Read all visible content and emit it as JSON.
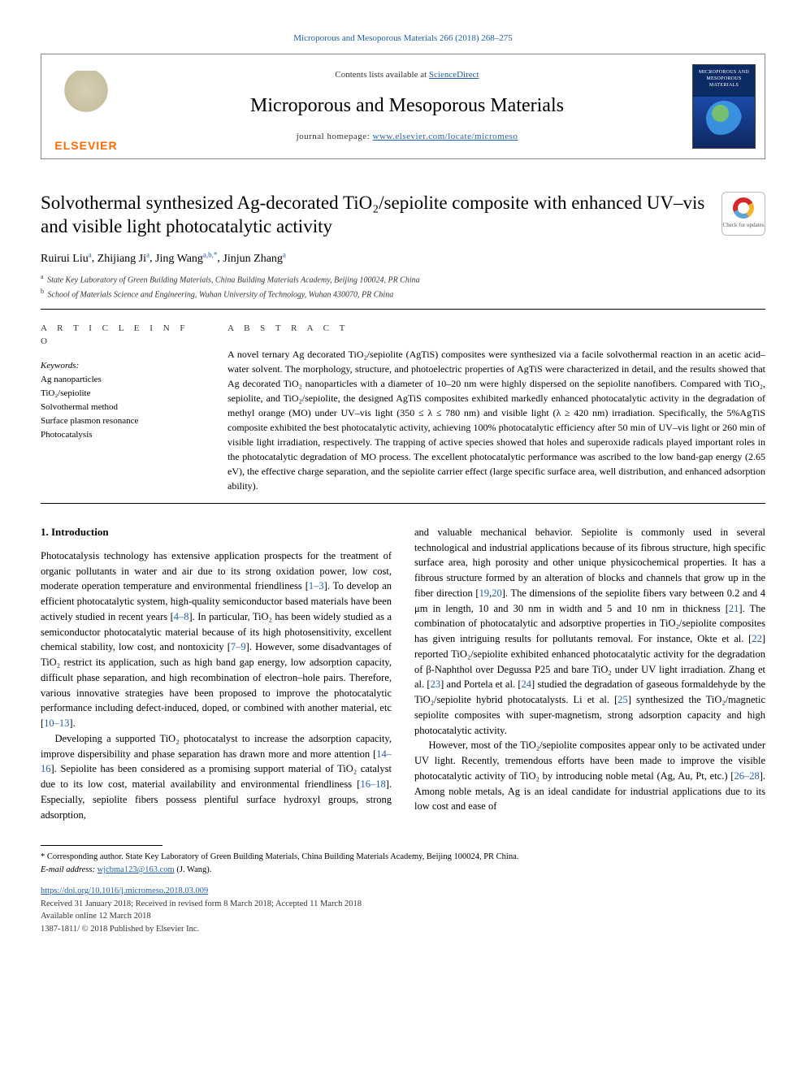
{
  "top_citation": "Microporous and Mesoporous Materials 266 (2018) 268–275",
  "header": {
    "publisher_word": "ELSEVIER",
    "contents_prefix": "Contents lists available at ",
    "contents_link": "ScienceDirect",
    "journal_name": "Microporous and Mesoporous Materials",
    "homepage_prefix": "journal homepage: ",
    "homepage_link": "www.elsevier.com/locate/micromeso",
    "cover_label": "MICROPOROUS AND MESOPOROUS MATERIALS"
  },
  "article": {
    "title": "Solvothermal synthesized Ag-decorated TiO₂/sepiolite composite with enhanced UV–vis and visible light photocatalytic activity",
    "crossmark_label": "Check for updates"
  },
  "authors_line": {
    "names": [
      {
        "name": "Ruirui Liu",
        "sup": "a"
      },
      {
        "name": "Zhijiang Ji",
        "sup": "a"
      },
      {
        "name": "Jing Wang",
        "sup": "a,b,*"
      },
      {
        "name": "Jinjun Zhang",
        "sup": "a"
      }
    ]
  },
  "affiliations": [
    {
      "sup": "a",
      "text": "State Key Laboratory of Green Building Materials, China Building Materials Academy, Beijing 100024, PR China"
    },
    {
      "sup": "b",
      "text": "School of Materials Science and Engineering, Wuhan University of Technology, Wuhan 430070, PR China"
    }
  ],
  "info": {
    "heading": "A R T I C L E  I N F O",
    "keywords_label": "Keywords:",
    "keywords": [
      "Ag nanoparticles",
      "TiO₂/sepiolite",
      "Solvothermal method",
      "Surface plasmon resonance",
      "Photocatalysis"
    ]
  },
  "abstract": {
    "heading": "A B S T R A C T",
    "text": "A novel ternary Ag decorated TiO₂/sepiolite (AgTiS) composites were synthesized via a facile solvothermal reaction in an acetic acid–water solvent. The morphology, structure, and photoelectric properties of AgTiS were characterized in detail, and the results showed that Ag decorated TiO₂ nanoparticles with a diameter of 10–20 nm were highly dispersed on the sepiolite nanofibers. Compared with TiO₂, sepiolite, and TiO₂/sepiolite, the designed AgTiS composites exhibited markedly enhanced photocatalytic activity in the degradation of methyl orange (MO) under UV–vis light (350 ≤ λ ≤ 780 nm) and visible light (λ ≥ 420 nm) irradiation. Specifically, the 5%AgTiS composite exhibited the best photocatalytic activity, achieving 100% photocatalytic efficiency after 50 min of UV–vis light or 260 min of visible light irradiation, respectively. The trapping of active species showed that holes and superoxide radicals played important roles in the photocatalytic degradation of MO process. The excellent photocatalytic performance was ascribed to the low band-gap energy (2.65 eV), the effective charge separation, and the sepiolite carrier effect (large specific surface area, well distribution, and enhanced adsorption ability)."
  },
  "body": {
    "heading": "1. Introduction",
    "left_paras": [
      "Photocatalysis technology has extensive application prospects for the treatment of organic pollutants in water and air due to its strong oxidation power, low cost, moderate operation temperature and environmental friendliness [|1–3|]. To develop an efficient photocatalytic system, high-quality semiconductor based materials have been actively studied in recent years [|4–8|]. In particular, TiO₂ has been widely studied as a semiconductor photocatalytic material because of its high photosensitivity, excellent chemical stability, low cost, and nontoxicity [|7–9|]. However, some disadvantages of TiO₂ restrict its application, such as high band gap energy, low adsorption capacity, difficult phase separation, and high recombination of electron–hole pairs. Therefore, various innovative strategies have been proposed to improve the photocatalytic performance including defect-induced, doped, or combined with another material, etc [|10–13|].",
      "Developing a supported TiO₂ photocatalyst to increase the adsorption capacity, improve dispersibility and phase separation has drawn more and more attention [|14–16|]. Sepiolite has been considered as a promising support material of TiO₂ catalyst due to its low cost, material availability and environmental friendliness [|16–18|]. Especially, sepiolite fibers possess plentiful surface hydroxyl groups, strong adsorption,"
    ],
    "right_paras": [
      "and valuable mechanical behavior. Sepiolite is commonly used in several technological and industrial applications because of its fibrous structure, high specific surface area, high porosity and other unique physicochemical properties. It has a fibrous structure formed by an alteration of blocks and channels that grow up in the fiber direction [|19|,|20|]. The dimensions of the sepiolite fibers vary between 0.2 and 4 μm in length, 10 and 30 nm in width and 5 and 10 nm in thickness [|21|]. The combination of photocatalytic and adsorptive properties in TiO₂/sepiolite composites has given intriguing results for pollutants removal. For instance, Okte et al. [|22|] reported TiO₂/sepiolite exhibited enhanced photocatalytic activity for the degradation of β-Naphthol over Degussa P25 and bare TiO₂ under UV light irradiation. Zhang et al. [|23|] and Portela et al. [|24|] studied the degradation of gaseous formaldehyde by the TiO₂/sepiolite hybrid photocatalysts. Li et al. [|25|] synthesized the TiO₂/magnetic sepiolite composites with super-magnetism, strong adsorption capacity and high photocatalytic activity.",
      "However, most of the TiO₂/sepiolite composites appear only to be activated under UV light. Recently, tremendous efforts have been made to improve the visible photocatalytic activity of TiO₂ by introducing noble metal (Ag, Au, Pt, etc.) [|26–28|]. Among noble metals, Ag is an ideal candidate for industrial applications due to its low cost and ease of"
    ]
  },
  "footnotes": {
    "corr": "* Corresponding author. State Key Laboratory of Green Building Materials, China Building Materials Academy, Beijing 100024, PR China.",
    "email_label": "E-mail address:",
    "email": "wjcbma123@163.com",
    "email_person": "(J. Wang)."
  },
  "doi": {
    "link": "https://doi.org/10.1016/j.micromeso.2018.03.009",
    "received": "Received 31 January 2018; Received in revised form 8 March 2018; Accepted 11 March 2018",
    "online": "Available online 12 March 2018",
    "copyright": "1387-1811/ © 2018 Published by Elsevier Inc."
  },
  "colors": {
    "link": "#2060b0",
    "text": "#000000",
    "rule": "#000000",
    "publisher_orange": "#ff6a00"
  }
}
